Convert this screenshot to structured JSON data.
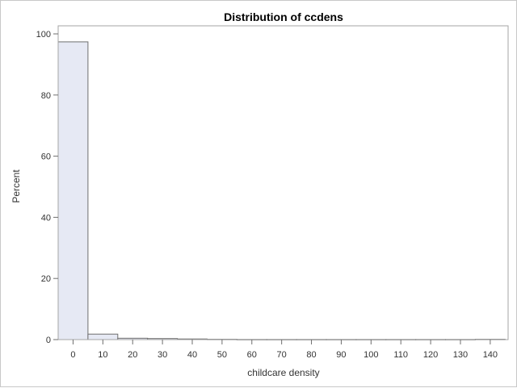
{
  "chart_data": {
    "type": "bar",
    "title": "Distribution of ccdens",
    "xlabel": "childcare density",
    "ylabel": "Percent",
    "xlim": [
      -5,
      146
    ],
    "ylim": [
      0,
      100
    ],
    "xticks": [
      0,
      10,
      20,
      30,
      40,
      50,
      60,
      70,
      80,
      90,
      100,
      110,
      120,
      130,
      140
    ],
    "yticks": [
      0,
      20,
      40,
      60,
      80,
      100
    ],
    "bin_width": 10,
    "bins": [
      {
        "midpoint": 0,
        "percent": 97.4
      },
      {
        "midpoint": 10,
        "percent": 1.8
      },
      {
        "midpoint": 20,
        "percent": 0.45
      },
      {
        "midpoint": 30,
        "percent": 0.35
      },
      {
        "midpoint": 40,
        "percent": 0.2
      },
      {
        "midpoint": 50,
        "percent": 0.1
      },
      {
        "midpoint": 60,
        "percent": 0.05
      },
      {
        "midpoint": 70,
        "percent": 0.05
      },
      {
        "midpoint": 80,
        "percent": 0.05
      },
      {
        "midpoint": 90,
        "percent": 0.05
      },
      {
        "midpoint": 100,
        "percent": 0.05
      },
      {
        "midpoint": 110,
        "percent": 0.05
      },
      {
        "midpoint": 120,
        "percent": 0.05
      },
      {
        "midpoint": 130,
        "percent": 0.05
      },
      {
        "midpoint": 140,
        "percent": 0.1
      }
    ],
    "grid": false,
    "legend": "none"
  }
}
